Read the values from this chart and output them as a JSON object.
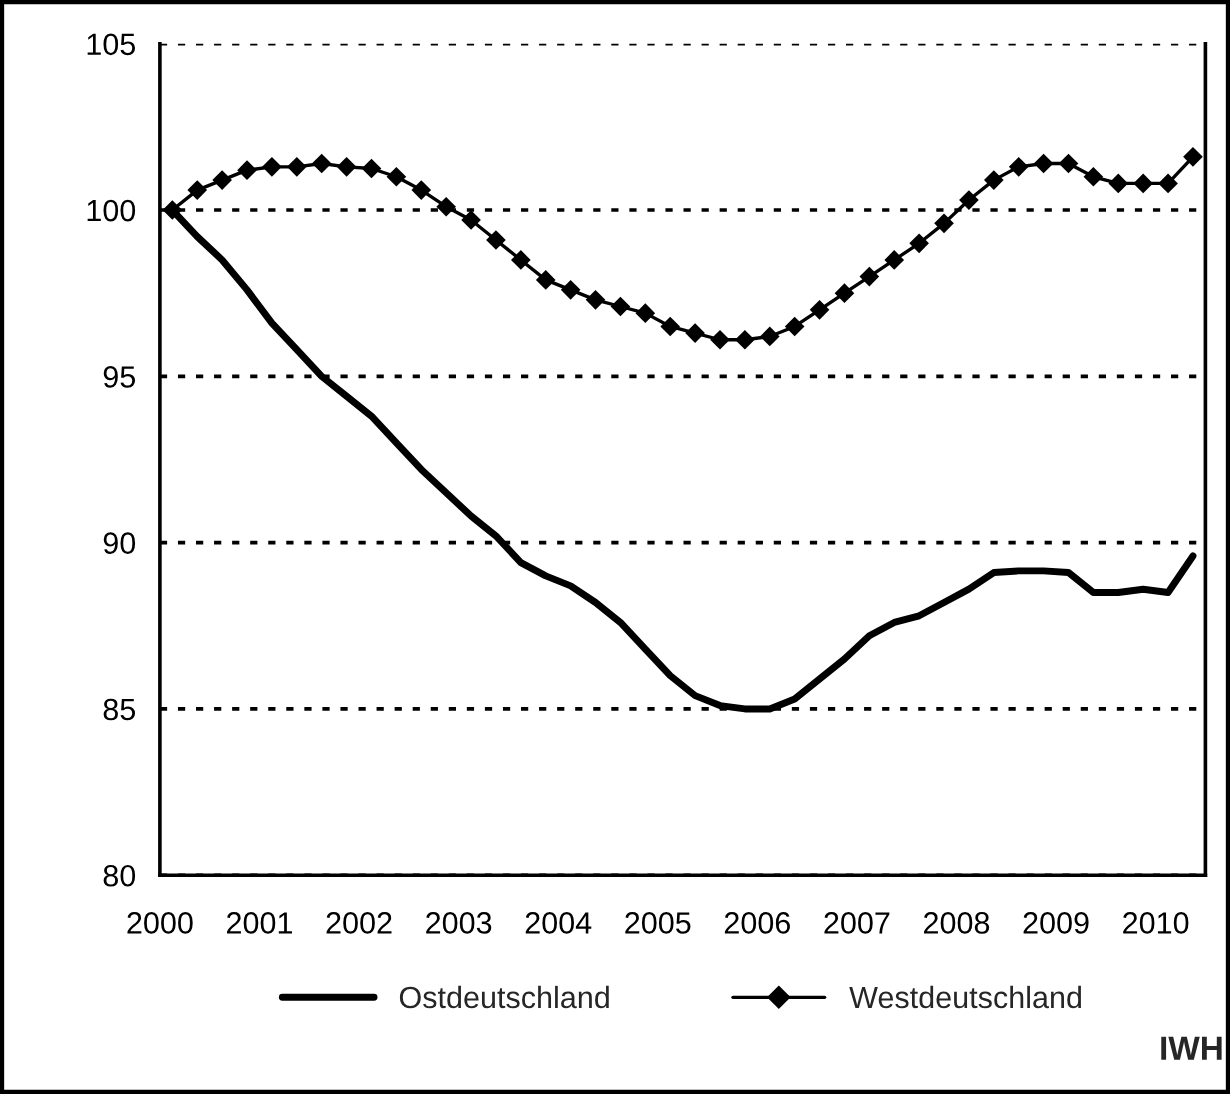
{
  "chart_data": {
    "type": "line",
    "x": [
      2000.125,
      2000.375,
      2000.625,
      2000.875,
      2001.125,
      2001.375,
      2001.625,
      2001.875,
      2002.125,
      2002.375,
      2002.625,
      2002.875,
      2003.125,
      2003.375,
      2003.625,
      2003.875,
      2004.125,
      2004.375,
      2004.625,
      2004.875,
      2005.125,
      2005.375,
      2005.625,
      2005.875,
      2006.125,
      2006.375,
      2006.625,
      2006.875,
      2007.125,
      2007.375,
      2007.625,
      2007.875,
      2008.125,
      2008.375,
      2008.625,
      2008.875,
      2009.125,
      2009.375,
      2009.625,
      2009.875,
      2010.125,
      2010.375
    ],
    "series": [
      {
        "name": "Ostdeutschland",
        "color": "#000000",
        "marker": "none",
        "line_style": "solid",
        "values": [
          100,
          99.2,
          98.5,
          97.6,
          96.6,
          95.8,
          95.0,
          94.4,
          93.8,
          93.0,
          92.2,
          91.5,
          90.8,
          90.2,
          89.4,
          89.0,
          88.7,
          88.2,
          87.6,
          86.8,
          86.0,
          85.4,
          85.1,
          85.0,
          85.0,
          85.3,
          85.9,
          86.5,
          87.2,
          87.6,
          87.8,
          88.2,
          88.6,
          89.1,
          89.15,
          89.15,
          89.1,
          88.5,
          88.5,
          88.6,
          88.5,
          89.6
        ]
      },
      {
        "name": "Westdeutschland",
        "color": "#000000",
        "marker": "diamond",
        "line_style": "solid",
        "values": [
          100,
          100.6,
          100.9,
          101.2,
          101.3,
          101.3,
          101.4,
          101.3,
          101.25,
          101.0,
          100.6,
          100.1,
          99.7,
          99.1,
          98.5,
          97.9,
          97.6,
          97.3,
          97.1,
          96.9,
          96.5,
          96.3,
          96.1,
          96.1,
          96.2,
          96.5,
          97.0,
          97.5,
          98.0,
          98.5,
          99.0,
          99.6,
          100.3,
          100.9,
          101.3,
          101.4,
          101.4,
          101.0,
          100.8,
          100.8,
          100.8,
          101.6
        ]
      }
    ],
    "xlim": [
      2000,
      2010.5
    ],
    "xticks": [
      2000,
      2001,
      2002,
      2003,
      2004,
      2005,
      2006,
      2007,
      2008,
      2009,
      2010
    ],
    "ylim": [
      80,
      105
    ],
    "yticks": [
      80,
      85,
      90,
      95,
      100,
      105
    ],
    "grid": "y",
    "legend": "bottom",
    "annotations": [
      "IWH"
    ]
  }
}
